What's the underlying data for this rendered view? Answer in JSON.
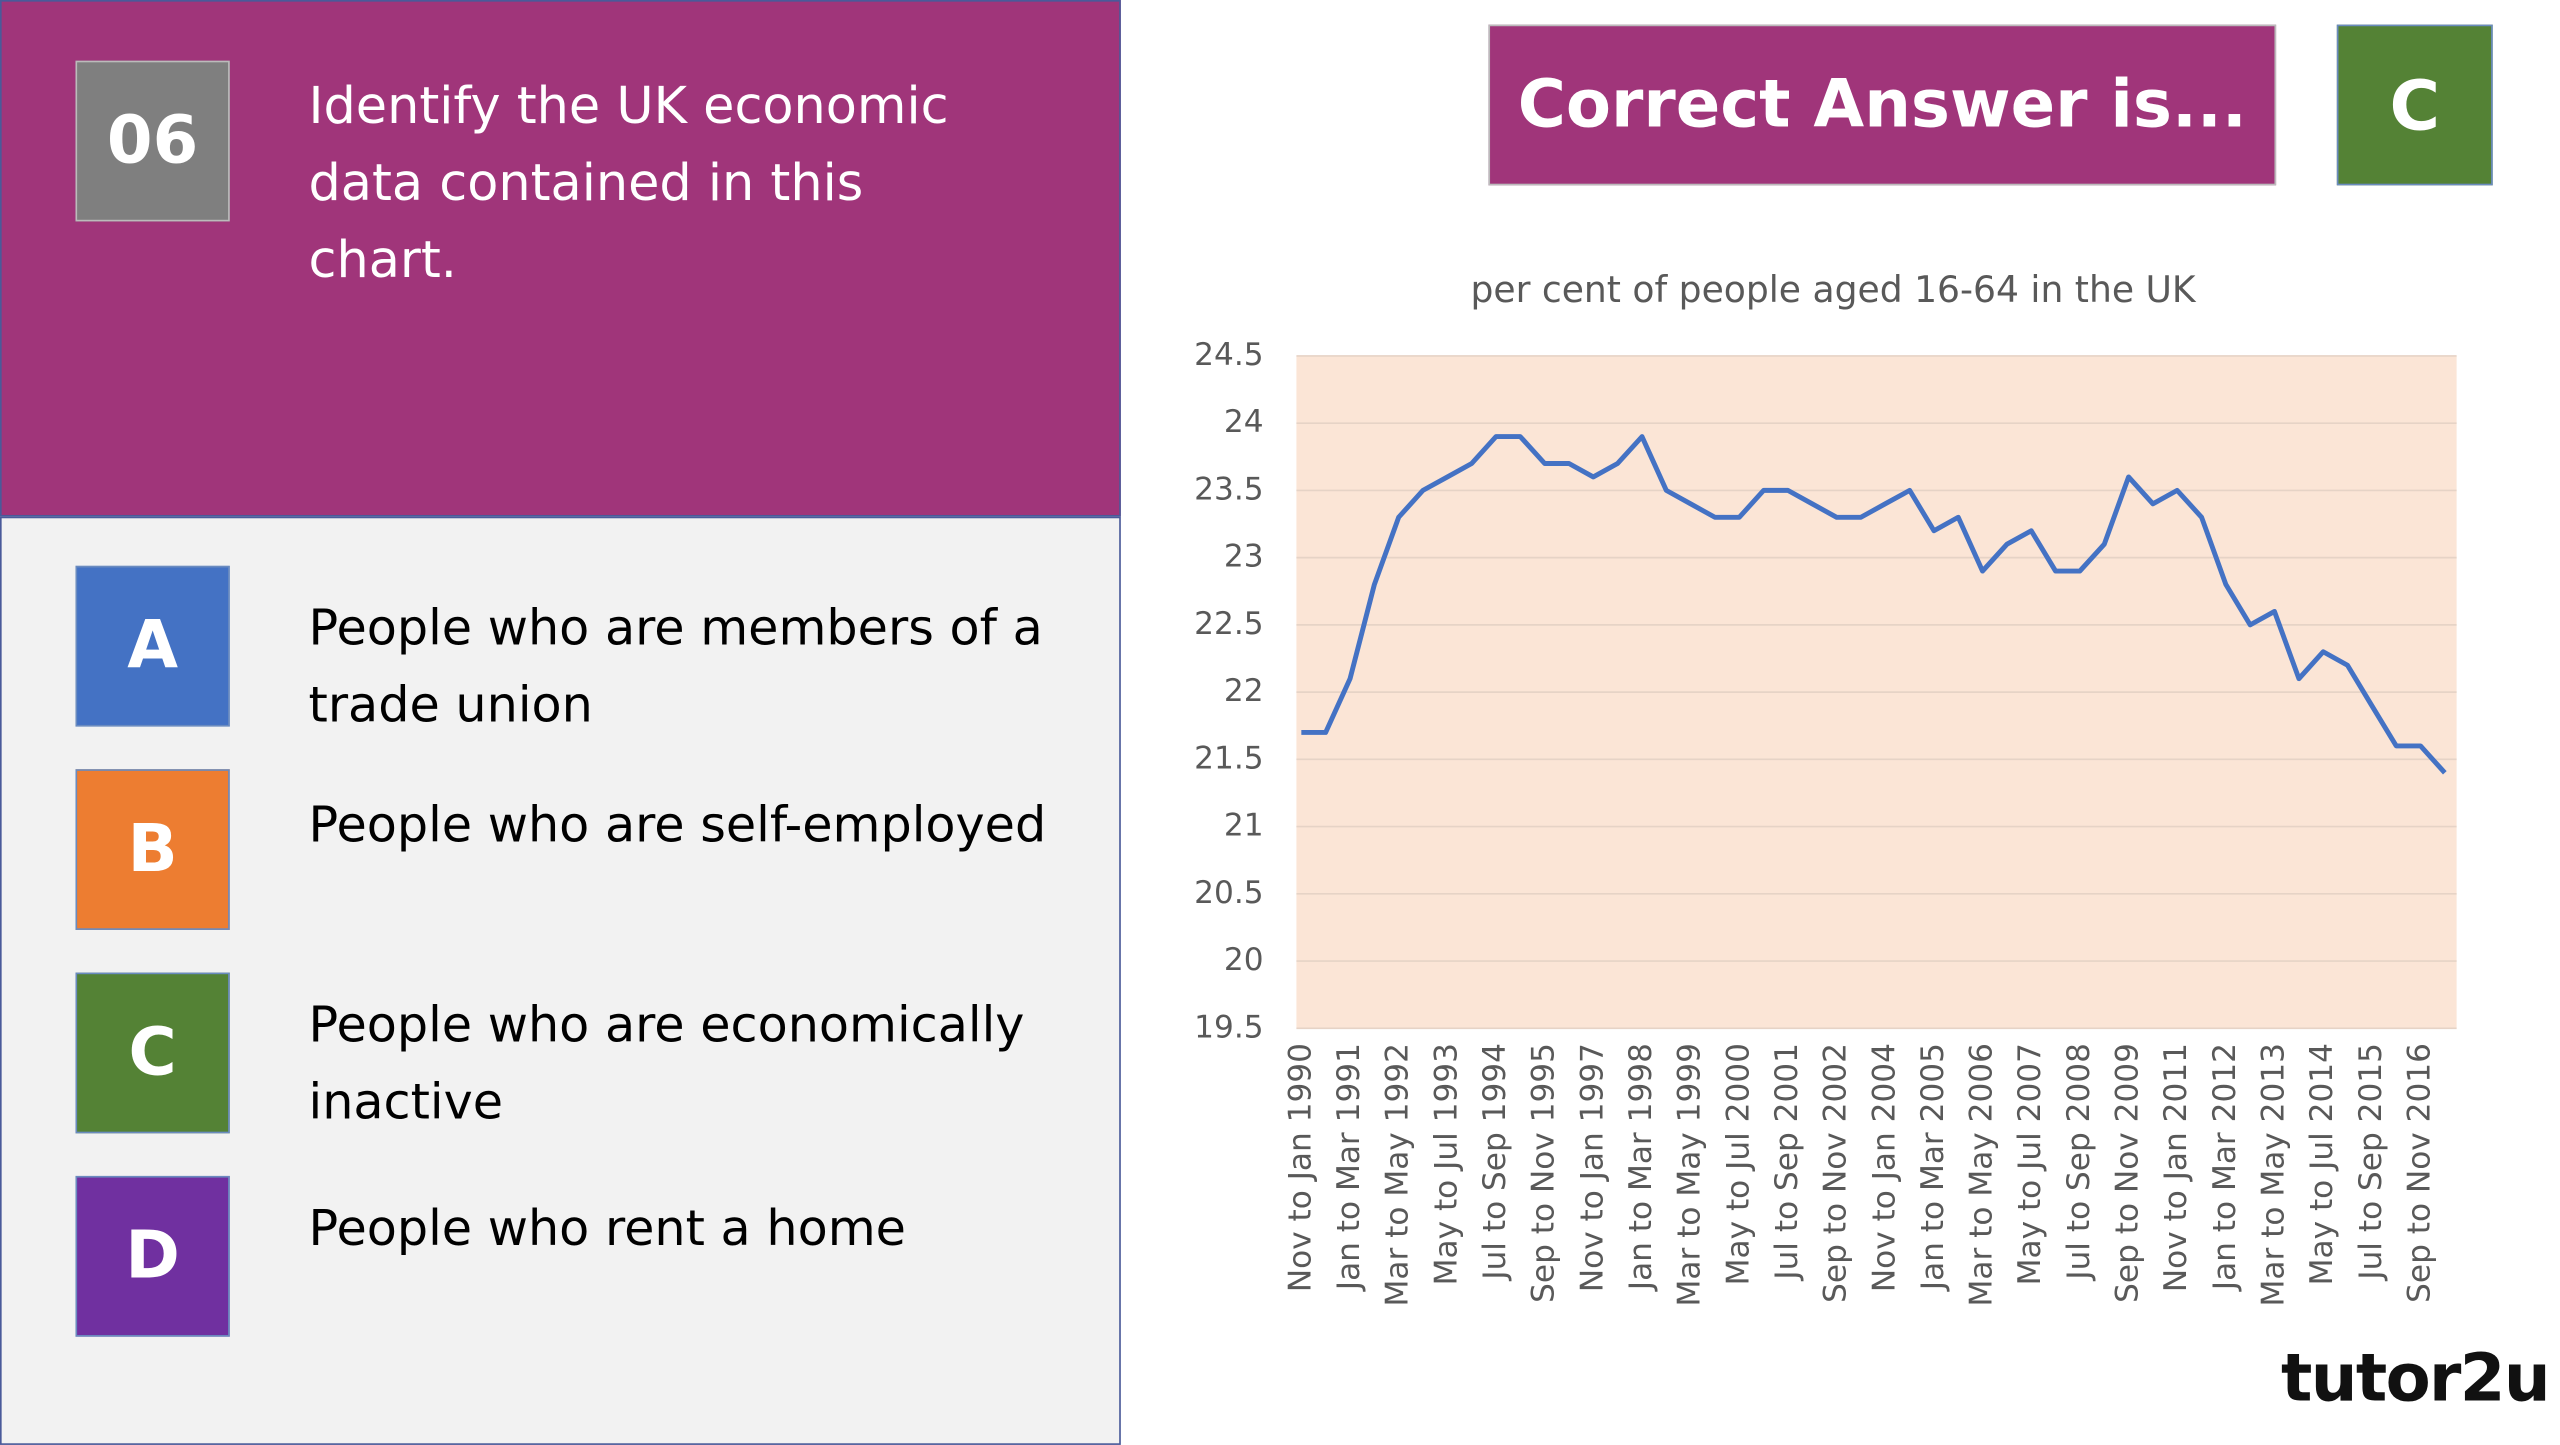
{
  "question": {
    "number": "06",
    "text": "Identify the UK economic data contained in this chart."
  },
  "options": [
    {
      "letter": "A",
      "text": "People who are members of a trade union"
    },
    {
      "letter": "B",
      "text": "People who are self-employed"
    },
    {
      "letter": "C",
      "text": "People who are economically inactive"
    },
    {
      "letter": "D",
      "text": "People who rent a home"
    }
  ],
  "answer": {
    "label": "Correct Answer is...",
    "letter": "C"
  },
  "logo": "tutor2u",
  "chart_data": {
    "type": "line",
    "title": "per cent of people aged 16-64 in the UK",
    "categories": [
      "Nov to Jan 1990",
      null,
      "Jan to Mar 1991",
      null,
      "Mar to May 1992",
      null,
      "May to Jul 1993",
      null,
      "Jul to Sep 1994",
      null,
      "Sep to Nov 1995",
      null,
      "Nov to Jan 1997",
      null,
      "Jan to Mar 1998",
      null,
      "Mar to May 1999",
      null,
      "May to Jul 2000",
      null,
      "Jul to Sep 2001",
      null,
      "Sep to Nov 2002",
      null,
      "Nov to Jan 2004",
      null,
      "Jan to Mar 2005",
      null,
      "Mar to May 2006",
      null,
      "May to Jul 2007",
      null,
      "Jul to Sep 2008",
      null,
      "Sep to Nov 2009",
      null,
      "Nov to Jan 2011",
      null,
      "Jan to Mar 2012",
      null,
      "Mar to May 2013",
      null,
      "May to Jul 2014",
      null,
      "Jul to Sep 2015",
      null,
      "Sep to Nov 2016",
      null
    ],
    "values": [
      21.7,
      21.7,
      22.1,
      22.8,
      23.3,
      23.5,
      23.6,
      23.7,
      23.9,
      23.9,
      23.7,
      23.7,
      23.6,
      23.7,
      23.9,
      23.5,
      23.4,
      23.3,
      23.3,
      23.5,
      23.5,
      23.4,
      23.3,
      23.3,
      23.4,
      23.5,
      23.2,
      23.3,
      22.9,
      23.1,
      23.2,
      22.9,
      22.9,
      23.1,
      23.6,
      23.4,
      23.5,
      23.3,
      22.8,
      22.5,
      22.6,
      22.1,
      22.3,
      22.2,
      21.9,
      21.6,
      21.6,
      21.4
    ],
    "color": "#4472c4",
    "ylim": [
      19.5,
      24.5
    ],
    "yticks": [
      19.5,
      20,
      20.5,
      21,
      21.5,
      22,
      22.5,
      23,
      23.5,
      24,
      24.5
    ],
    "grid": true
  }
}
